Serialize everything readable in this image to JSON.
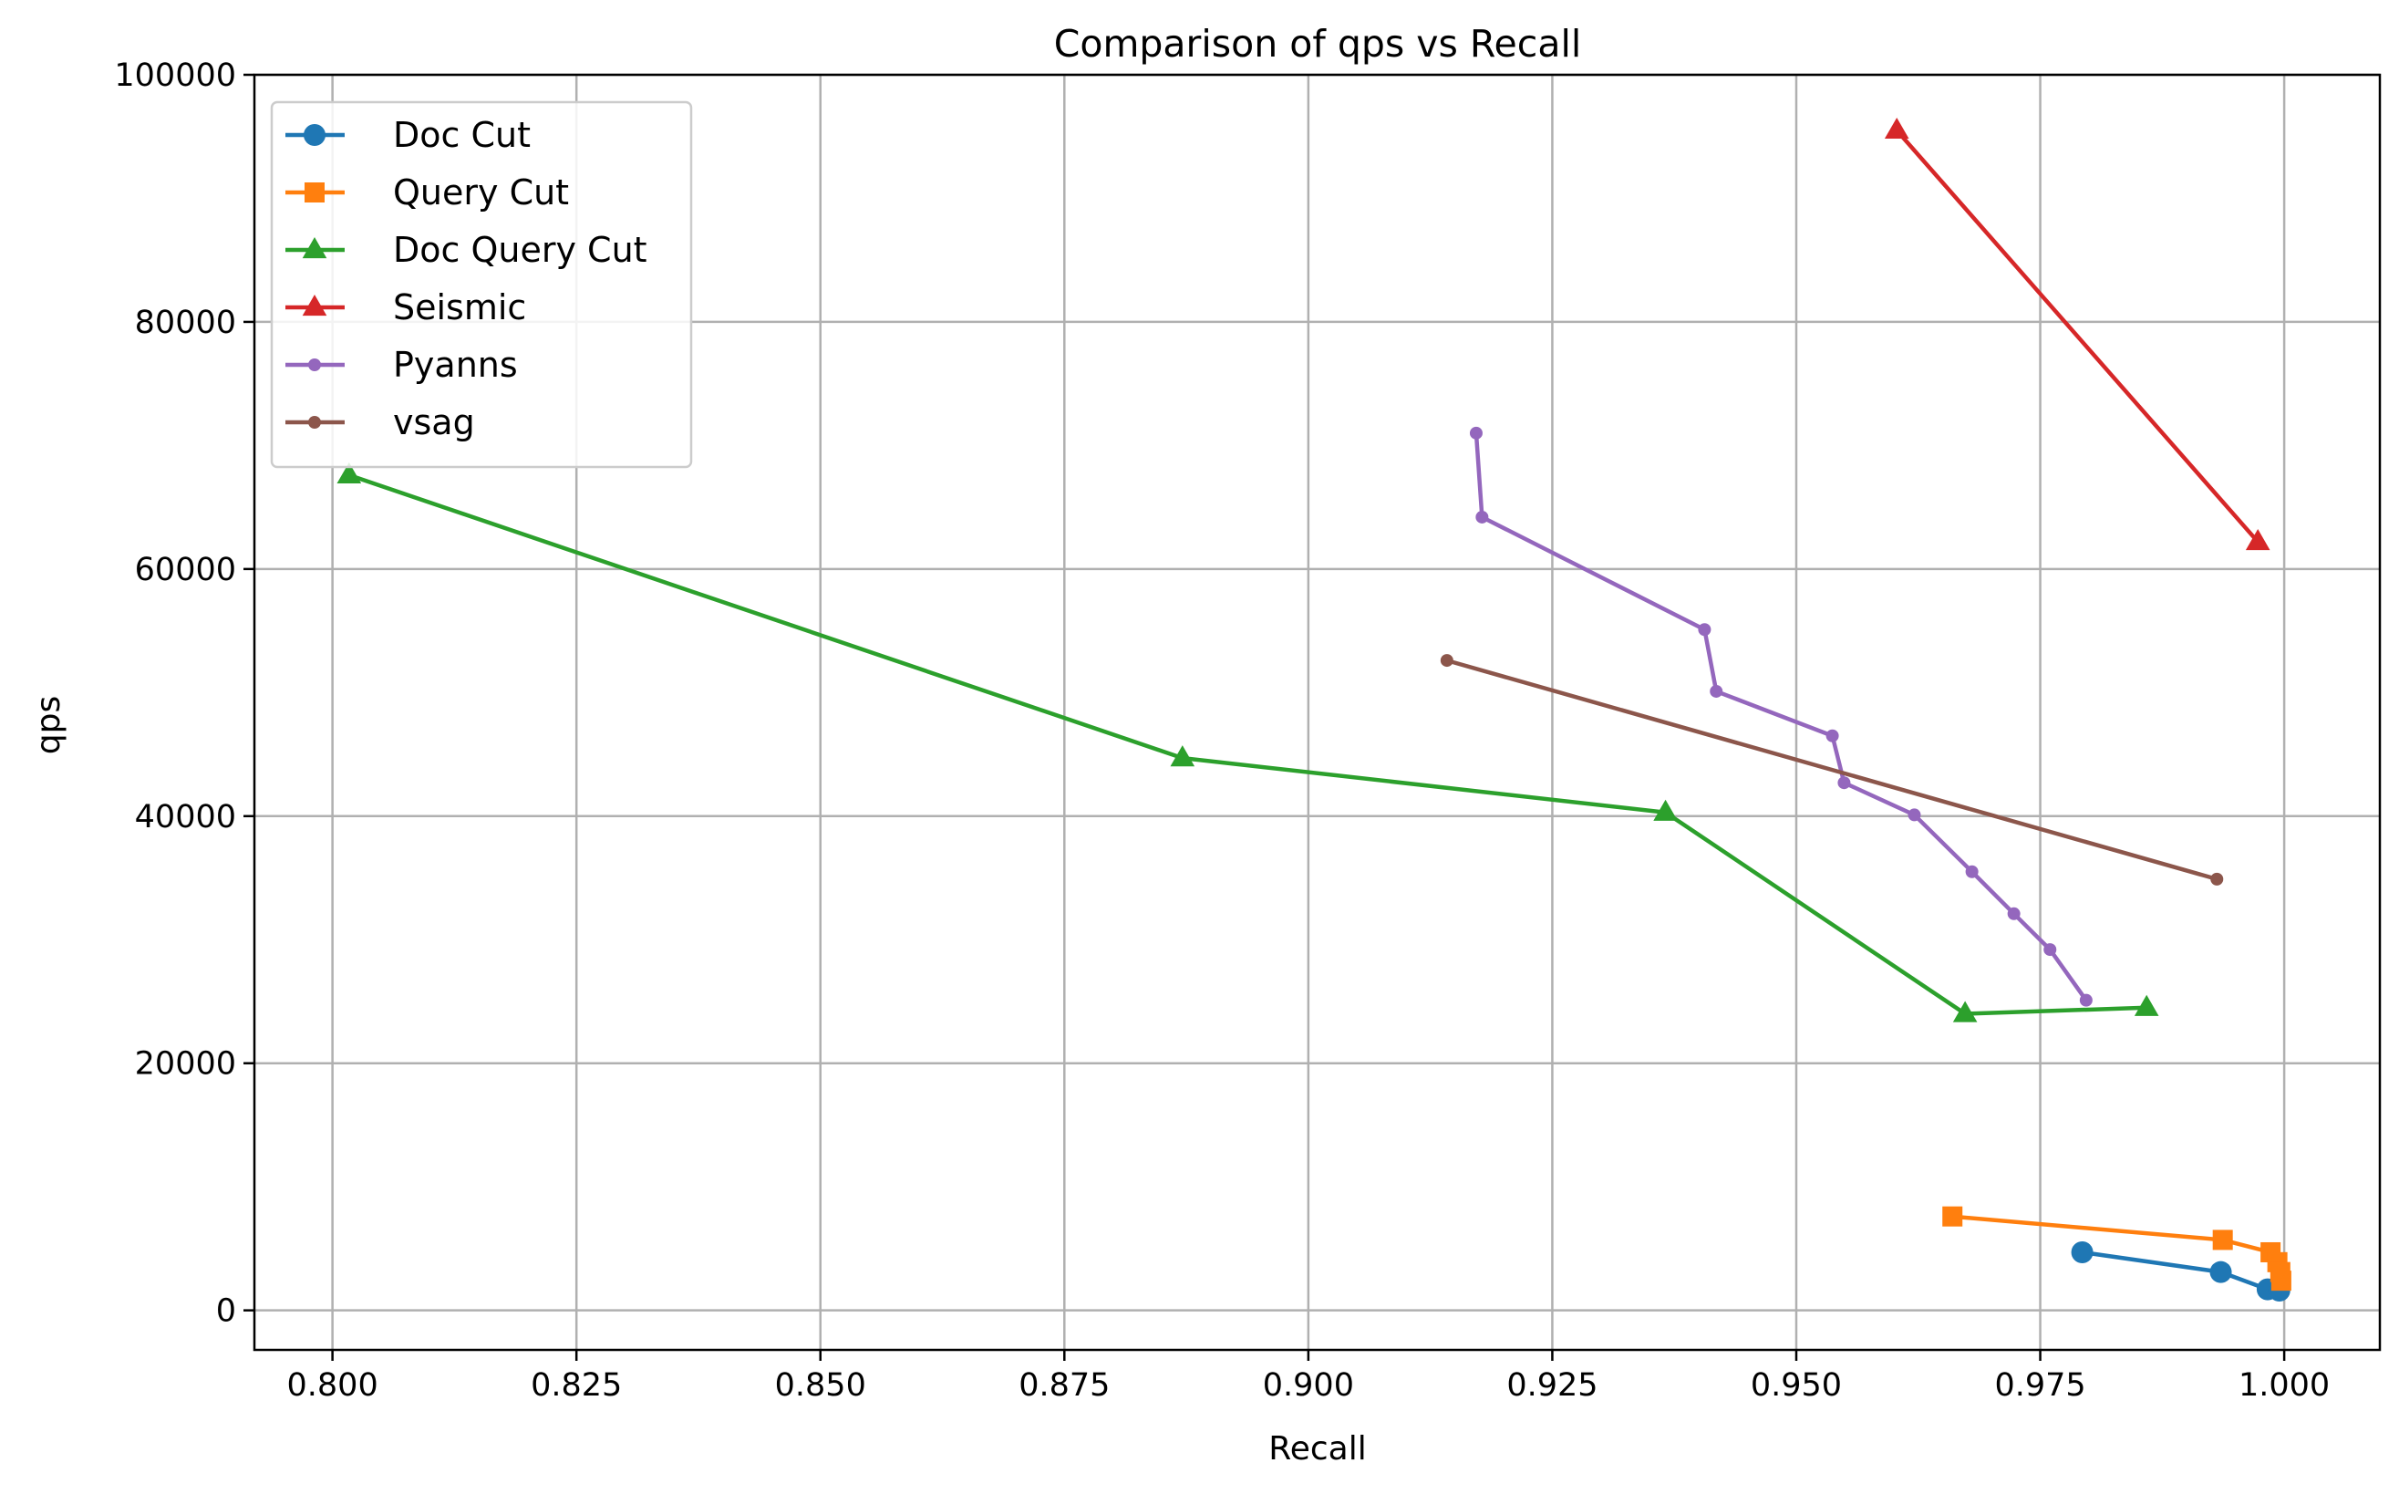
{
  "chart_data": {
    "type": "line",
    "title": "Comparison of qps vs Recall",
    "xlabel": "Recall",
    "ylabel": "qps",
    "xlim": [
      0.792,
      1.0098
    ],
    "ylim": [
      -3200,
      100000
    ],
    "xticks": [
      0.8,
      0.825,
      0.85,
      0.875,
      0.9,
      0.925,
      0.95,
      0.975,
      1.0
    ],
    "xtick_labels": [
      "0.800",
      "0.825",
      "0.850",
      "0.875",
      "0.900",
      "0.925",
      "0.950",
      "0.975",
      "1.000"
    ],
    "yticks": [
      0,
      20000,
      40000,
      60000,
      80000,
      100000
    ],
    "ytick_labels": [
      "0",
      "20000",
      "40000",
      "60000",
      "80000",
      "100000"
    ],
    "grid": true,
    "legend_position": "top-left",
    "series": [
      {
        "name": "Doc Cut",
        "color": "#1f77b4",
        "marker": "circle",
        "x": [
          0.9793,
          0.9935,
          0.9983,
          0.9995
        ],
        "y": [
          4700,
          3100,
          1700,
          1600
        ]
      },
      {
        "name": "Query Cut",
        "color": "#ff7f0e",
        "marker": "square",
        "x": [
          0.966,
          0.9937,
          0.9986,
          0.9993,
          0.9996,
          0.9997
        ],
        "y": [
          7600,
          5700,
          4700,
          3900,
          3100,
          2400
        ]
      },
      {
        "name": "Doc Query Cut",
        "color": "#2ca02c",
        "marker": "triangle",
        "x": [
          0.8017,
          0.8871,
          0.9366,
          0.9673,
          0.9859
        ],
        "y": [
          67600,
          44700,
          40300,
          24000,
          24500
        ]
      },
      {
        "name": "Seismic",
        "color": "#d62728",
        "marker": "triangle",
        "x": [
          0.9603,
          0.9973
        ],
        "y": [
          95500,
          62200
        ]
      },
      {
        "name": "Pyanns",
        "color": "#9467bd",
        "marker": "small-dot",
        "x": [
          0.9172,
          0.9178,
          0.9406,
          0.9418,
          0.9537,
          0.9549,
          0.9621,
          0.968,
          0.9723,
          0.976,
          0.9797
        ],
        "y": [
          71000,
          64200,
          55100,
          50100,
          46500,
          42700,
          40100,
          35500,
          32100,
          29200,
          25100
        ]
      },
      {
        "name": "vsag",
        "color": "#8c564b",
        "marker": "small-dot",
        "x": [
          0.9142,
          0.9931
        ],
        "y": [
          52600,
          34900
        ]
      }
    ]
  }
}
